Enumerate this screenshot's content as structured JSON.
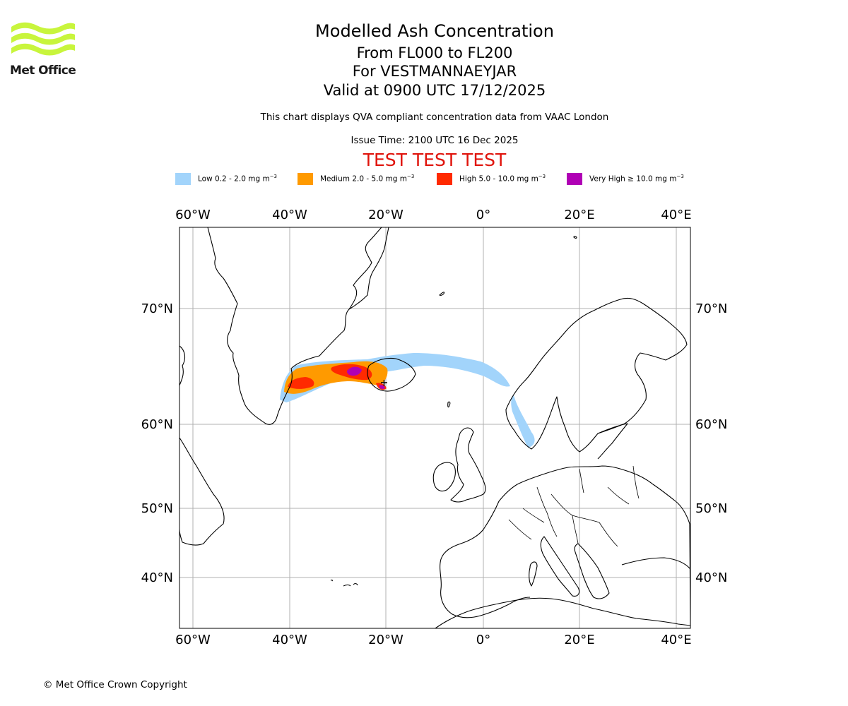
{
  "logo": {
    "brand": "Met Office",
    "color": "#c8f53c"
  },
  "title": {
    "main": "Modelled Ash Concentration",
    "levels": "From FL000 to FL200",
    "volcano": "For VESTMANNAEYJAR",
    "valid": "Valid at 0900 UTC 17/12/2025"
  },
  "note": "This chart displays QVA compliant concentration data from VAAC London",
  "issue_time": "Issue Time: 2100 UTC 16 Dec 2025",
  "test_banner": "TEST TEST TEST",
  "legend": [
    {
      "label": "Low 0.2 - 2.0 mg m",
      "unit_exp": "−3",
      "color": "#a2d4fb"
    },
    {
      "label": "Medium 2.0 - 5.0 mg m",
      "unit_exp": "−3",
      "color": "#ff9a00"
    },
    {
      "label": "High 5.0 - 10.0 mg m",
      "unit_exp": "−3",
      "color": "#ff2a00"
    },
    {
      "label": "Very High  ≥  10.0 mg m",
      "unit_exp": "−3",
      "color": "#b000b5"
    }
  ],
  "map": {
    "lon_ticks": [
      "60°W",
      "40°W",
      "20°W",
      "0°",
      "20°E",
      "40°E"
    ],
    "lat_ticks": [
      "70°N",
      "60°N",
      "50°N",
      "40°N"
    ],
    "gridlines": true
  },
  "copyright": "© Met Office Crown Copyright"
}
